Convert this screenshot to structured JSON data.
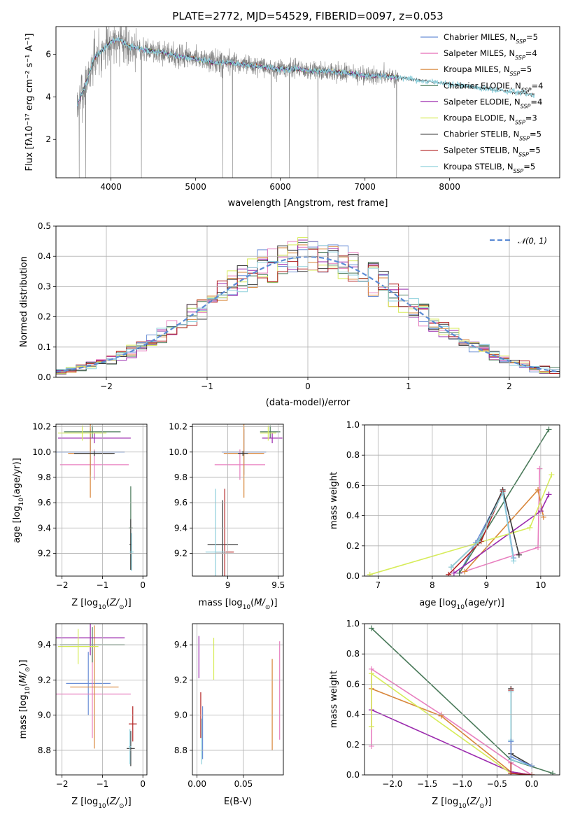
{
  "figure": {
    "title": "PLATE=2772, MJD=54529, FIBERID=0097, z=0.053"
  },
  "legend_entries": [
    {
      "label": "Chabrier MILES, N",
      "sub": "SSP",
      "eq": "=5",
      "color": "#6b8fd6"
    },
    {
      "label": "Salpeter MILES, N",
      "sub": "SSP",
      "eq": "=4",
      "color": "#e87fbf"
    },
    {
      "label": "Kroupa MILES, N",
      "sub": "SSP",
      "eq": "=5",
      "color": "#d8863a"
    },
    {
      "label": "Chabrier ELODIE, N",
      "sub": "SSP",
      "eq": "=4",
      "color": "#4a7a5a"
    },
    {
      "label": "Salpeter ELODIE, N",
      "sub": "SSP",
      "eq": "=4",
      "color": "#9b2aae"
    },
    {
      "label": "Kroupa ELODIE, N",
      "sub": "SSP",
      "eq": "=3",
      "color": "#d7ec5a"
    },
    {
      "label": "Chabrier STELIB, N",
      "sub": "SSP",
      "eq": "=5",
      "color": "#3a3a3a"
    },
    {
      "label": "Salpeter STELIB, N",
      "sub": "SSP",
      "eq": "=5",
      "color": "#b22222"
    },
    {
      "label": "Kroupa STELIB, N",
      "sub": "SSP",
      "eq": "=5",
      "color": "#8fd0dc"
    }
  ],
  "chart_data": [
    {
      "id": "spectrum",
      "type": "line",
      "xlabel": "wavelength [Angstrom, rest frame]",
      "ylabel": "Flux [fλ10⁻¹⁷ erg cm⁻² s⁻¹ A⁻¹]",
      "xlim": [
        3350,
        9300
      ],
      "ylim": [
        0.2,
        7.3
      ],
      "xticks": [
        4000,
        5000,
        6000,
        7000,
        8000
      ],
      "yticks": [
        2,
        4,
        6
      ],
      "data_range": [
        3600,
        9000
      ],
      "model_curve": {
        "x": [
          3600,
          3700,
          3800,
          3900,
          4000,
          4100,
          4200,
          4400,
          4600,
          4800,
          5000,
          5200,
          5400,
          5600,
          5800,
          6000,
          6200,
          6400,
          6600,
          6800,
          7000,
          7200,
          7400,
          7600,
          7800,
          8000,
          8200,
          8400,
          8600,
          8800,
          9000
        ],
        "y": [
          3.6,
          4.6,
          5.8,
          6.2,
          6.6,
          6.7,
          6.4,
          6.2,
          6.1,
          5.9,
          5.8,
          5.6,
          5.6,
          5.5,
          5.4,
          5.3,
          5.3,
          5.2,
          5.2,
          5.1,
          5.0,
          5.0,
          4.9,
          4.8,
          4.7,
          4.6,
          4.5,
          4.4,
          4.3,
          4.2,
          4.1
        ]
      }
    },
    {
      "id": "residuals",
      "type": "histogram",
      "xlabel": "(data-model)/error",
      "ylabel": "Normed distribution",
      "xlim": [
        -2.5,
        2.5
      ],
      "ylim": [
        0,
        0.5
      ],
      "xticks": [
        -2,
        -1,
        0,
        1,
        2
      ],
      "yticks": [
        0.0,
        0.1,
        0.2,
        0.3,
        0.4,
        0.5
      ],
      "bin_width": 0.1,
      "legend": "𝒩(0, 1)"
    },
    {
      "id": "age_vs_Z",
      "type": "errorbar",
      "xlabel": "Z [log10(Z/Z⊙)]",
      "ylabel": "age  [log10(age/yr)]",
      "xlim": [
        -2.15,
        0.1
      ],
      "ylim": [
        9.02,
        10.22
      ],
      "xticks": [
        -2,
        -1,
        0
      ],
      "yticks": [
        9.2,
        9.4,
        9.6,
        9.8,
        10.0,
        10.2
      ],
      "points": [
        {
          "x": -1.3,
          "xerr": 0.85,
          "y": 10.0,
          "yerr": 0.18,
          "c": 0
        },
        {
          "x": -1.2,
          "xerr": 0.85,
          "y": 9.9,
          "yerr": 0.12,
          "c": 1
        },
        {
          "x": -1.3,
          "xerr": 0.55,
          "y": 9.99,
          "yerr": 0.35,
          "c": 2
        },
        {
          "x": -1.25,
          "xerr": 0.7,
          "y": 10.16,
          "yerr": 0.05,
          "c": 3
        },
        {
          "x": -1.2,
          "xerr": 0.9,
          "y": 10.11,
          "yerr": 0.04,
          "c": 4
        },
        {
          "x": -1.5,
          "xerr": 0.6,
          "y": 10.15,
          "yerr": 0.06,
          "c": 5
        },
        {
          "x": -1.2,
          "xerr": 0.5,
          "y": 9.99,
          "yerr": 0.02,
          "c": 6
        },
        {
          "x": -0.3,
          "xerr": 0.05,
          "y": 9.4,
          "yerr": 0.33,
          "c": 3
        },
        {
          "x": -0.3,
          "xerr": 0.03,
          "y": 9.27,
          "yerr": 0.2,
          "c": 6
        },
        {
          "x": -0.28,
          "xerr": 0.05,
          "y": 9.21,
          "yerr": 0.15,
          "c": 8
        }
      ]
    },
    {
      "id": "age_vs_mass",
      "type": "errorbar",
      "xlabel": "mass [log10(M/M⊙)]",
      "xlim": [
        8.65,
        9.55
      ],
      "ylim": [
        9.02,
        10.22
      ],
      "xticks": [
        9.0,
        9.5
      ],
      "yticks": [
        9.2,
        9.4,
        9.6,
        9.8,
        10.0,
        10.2
      ],
      "points": [
        {
          "x": 9.16,
          "xerr": 0.22,
          "y": 10.0,
          "yerr": 0.18,
          "c": 0
        },
        {
          "x": 9.12,
          "xerr": 0.25,
          "y": 9.9,
          "yerr": 0.12,
          "c": 1
        },
        {
          "x": 9.16,
          "xerr": 0.2,
          "y": 9.99,
          "yerr": 0.35,
          "c": 2
        },
        {
          "x": 9.42,
          "xerr": 0.1,
          "y": 10.16,
          "yerr": 0.05,
          "c": 3
        },
        {
          "x": 9.44,
          "xerr": 0.1,
          "y": 10.11,
          "yerr": 0.04,
          "c": 4
        },
        {
          "x": 9.4,
          "xerr": 0.08,
          "y": 10.15,
          "yerr": 0.06,
          "c": 5
        },
        {
          "x": 9.15,
          "xerr": 0.05,
          "y": 9.99,
          "yerr": 0.02,
          "c": 6
        },
        {
          "x": 8.95,
          "xerr": 0.15,
          "y": 9.27,
          "yerr": 0.35,
          "c": 6
        },
        {
          "x": 8.97,
          "xerr": 0.09,
          "y": 9.21,
          "yerr": 0.5,
          "c": 7
        },
        {
          "x": 8.88,
          "xerr": 0.1,
          "y": 9.21,
          "yerr": 0.5,
          "c": 8
        }
      ]
    },
    {
      "id": "weight_vs_age",
      "type": "line",
      "xlabel": "age  [log10(age/yr)]",
      "ylabel": "mass weight",
      "xlim": [
        6.75,
        10.35
      ],
      "ylim": [
        0,
        1.0
      ],
      "xticks": [
        7,
        8,
        9,
        10
      ],
      "yticks": [
        0.0,
        0.2,
        0.4,
        0.6,
        0.8,
        1.0
      ],
      "series": [
        {
          "c": 0,
          "x": [
            8.5,
            8.8,
            9.3,
            9.5
          ],
          "y": [
            0.02,
            0.22,
            0.56,
            0.12
          ]
        },
        {
          "c": 1,
          "x": [
            8.5,
            9.95,
            9.98
          ],
          "y": [
            0.02,
            0.19,
            0.71
          ]
        },
        {
          "c": 2,
          "x": [
            8.6,
            9.95,
            10.05
          ],
          "y": [
            0.03,
            0.57,
            0.39
          ]
        },
        {
          "c": 3,
          "x": [
            8.5,
            8.85,
            10.15
          ],
          "y": [
            0.02,
            0.22,
            0.97
          ]
        },
        {
          "c": 4,
          "x": [
            8.4,
            10.0,
            10.15
          ],
          "y": [
            0.02,
            0.43,
            0.54
          ]
        },
        {
          "c": 5,
          "x": [
            6.85,
            9.8,
            10.2
          ],
          "y": [
            0.01,
            0.32,
            0.67
          ]
        },
        {
          "c": 6,
          "x": [
            8.35,
            8.85,
            9.3,
            9.6
          ],
          "y": [
            0.06,
            0.23,
            0.57,
            0.14
          ]
        },
        {
          "c": 7,
          "x": [
            8.3,
            8.9,
            9.3
          ],
          "y": [
            0.01,
            0.23,
            0.56
          ]
        },
        {
          "c": 8,
          "x": [
            8.35,
            8.85,
            9.3,
            9.5
          ],
          "y": [
            0.06,
            0.23,
            0.55,
            0.1
          ]
        }
      ]
    },
    {
      "id": "mass_vs_Z",
      "type": "errorbar",
      "xlabel": "Z [log10(Z/Z⊙)]",
      "ylabel": "mass [log10(M/M⊙)]",
      "xlim": [
        -2.15,
        0.1
      ],
      "ylim": [
        8.66,
        9.52
      ],
      "xticks": [
        -2,
        -1,
        0
      ],
      "yticks": [
        8.8,
        9.0,
        9.2,
        9.4
      ],
      "points": [
        {
          "x": -1.35,
          "xerr": 0.55,
          "y": 9.18,
          "yerr": 0.18,
          "c": 0
        },
        {
          "x": -1.25,
          "xerr": 0.95,
          "y": 9.12,
          "yerr": 0.25,
          "c": 1
        },
        {
          "x": -1.2,
          "xerr": 0.6,
          "y": 9.16,
          "yerr": 0.35,
          "c": 2
        },
        {
          "x": -1.25,
          "xerr": 0.8,
          "y": 9.4,
          "yerr": 0.1,
          "c": 3
        },
        {
          "x": -1.3,
          "xerr": 0.85,
          "y": 9.44,
          "yerr": 0.1,
          "c": 4
        },
        {
          "x": -1.6,
          "xerr": 0.5,
          "y": 9.39,
          "yerr": 0.1,
          "c": 5
        },
        {
          "x": -0.3,
          "xerr": 0.1,
          "y": 8.81,
          "yerr": 0.1,
          "c": 6
        },
        {
          "x": -0.25,
          "xerr": 0.1,
          "y": 8.95,
          "yerr": 0.1,
          "c": 7
        },
        {
          "x": -0.32,
          "xerr": 0.03,
          "y": 8.82,
          "yerr": 0.1,
          "c": 8
        }
      ]
    },
    {
      "id": "mass_vs_EBV",
      "type": "errorbar",
      "xlabel": "E(B-V)",
      "xlim": [
        -0.005,
        0.093
      ],
      "ylim": [
        8.66,
        9.52
      ],
      "xticks": [
        0.0,
        0.05
      ],
      "tick_labels": [
        "0.00",
        "0.05"
      ],
      "yticks": [
        8.8,
        9.0,
        9.2,
        9.4
      ],
      "points": [
        {
          "x": 0.006,
          "y": 8.9,
          "yerr": 0.15,
          "c": 0
        },
        {
          "x": 0.089,
          "y": 9.14,
          "yerr": 0.28,
          "c": 1
        },
        {
          "x": 0.081,
          "y": 9.06,
          "yerr": 0.26,
          "c": 2
        },
        {
          "x": 0.002,
          "y": 9.33,
          "yerr": 0.12,
          "c": 4
        },
        {
          "x": 0.018,
          "y": 9.32,
          "yerr": 0.12,
          "c": 5
        },
        {
          "x": 0.004,
          "y": 9.0,
          "yerr": 0.13,
          "c": 7
        },
        {
          "x": 0.005,
          "y": 8.85,
          "yerr": 0.13,
          "c": 8
        }
      ]
    },
    {
      "id": "weight_vs_Z",
      "type": "line",
      "xlabel": "Z [log10(Z/Z⊙)]",
      "ylabel": "mass weight",
      "xlim": [
        -2.4,
        0.4
      ],
      "ylim": [
        0,
        1.0
      ],
      "xticks": [
        -2.0,
        -1.5,
        -1.0,
        -0.5,
        0.0
      ],
      "tick_labels": [
        "−2.0",
        "−1.5",
        "−1.0",
        "−0.5",
        "0.0"
      ],
      "yticks": [
        0.0,
        0.2,
        0.4,
        0.6,
        0.8,
        1.0
      ],
      "series": [
        {
          "c": 3,
          "x": [
            -2.3,
            -0.3,
            0.3
          ],
          "y": [
            0.97,
            0.1,
            0.01
          ]
        },
        {
          "c": 1,
          "x": [
            -2.3,
            -2.3,
            -1.3,
            -0.3,
            0.0
          ],
          "y": [
            0.19,
            0.7,
            0.4,
            0.08,
            0.0
          ]
        },
        {
          "c": 2,
          "x": [
            -2.3,
            -1.3,
            -0.3,
            0.0
          ],
          "y": [
            0.57,
            0.39,
            0.02,
            0.0
          ]
        },
        {
          "c": 4,
          "x": [
            -2.3,
            -0.3,
            0.0
          ],
          "y": [
            0.43,
            0.02,
            0.0
          ]
        },
        {
          "c": 5,
          "x": [
            -2.3,
            -2.3,
            -0.3,
            0.0
          ],
          "y": [
            0.32,
            0.67,
            0.01,
            0.0
          ]
        },
        {
          "c": 6,
          "x": [
            -0.3,
            -0.3,
            0.0
          ],
          "y": [
            0.57,
            0.14,
            0.06
          ]
        },
        {
          "c": 7,
          "x": [
            -0.3,
            -0.3,
            0.0
          ],
          "y": [
            0.56,
            0.01,
            0.0
          ]
        },
        {
          "c": 8,
          "x": [
            -0.3,
            -0.3,
            -0.3,
            0.0
          ],
          "y": [
            0.55,
            0.23,
            0.1,
            0.06
          ]
        },
        {
          "c": 0,
          "x": [
            -0.3,
            -0.3,
            0.0
          ],
          "y": [
            0.22,
            0.12,
            0.06
          ]
        }
      ]
    }
  ]
}
